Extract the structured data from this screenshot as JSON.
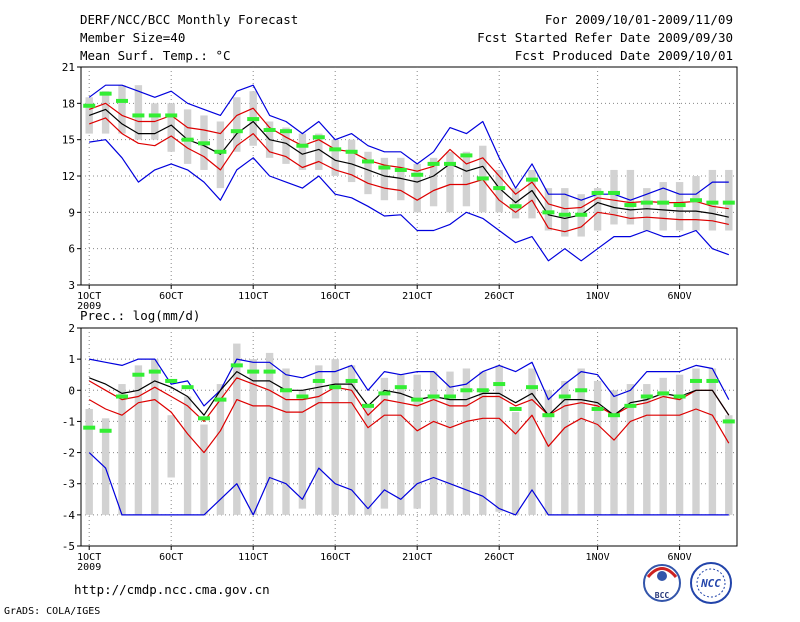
{
  "header": {
    "title": "DERF/NCC/BCC Monthly Forecast",
    "member_size": "Member Size=40",
    "variable": "Mean Surf. Temp.: °C",
    "period": "For 2009/10/01-2009/11/09",
    "refer_date": "Fcst Started Refer Date 2009/09/30",
    "produced_date": "Fcst Produced Date 2009/10/01"
  },
  "footer": {
    "url": "http://cmdp.ncc.cma.gov.cn",
    "grads": "GrADS: COLA/IGES",
    "logo_bcc": "BCC",
    "logo_ncc": "NCC"
  },
  "colors": {
    "ensemble_range": "#0000dd",
    "spread_band": "#dd0000",
    "ensemble_mean": "#000000",
    "observation": "#33ee33",
    "box": "#d2d2d2",
    "grid": "#888888"
  },
  "chart_data": [
    {
      "type": "line",
      "title": "Mean Surf. Temp.: °C",
      "xlabel": "",
      "ylabel": "°C",
      "ylim": [
        3,
        21
      ],
      "yticks": [
        "3",
        "6",
        "9",
        "12",
        "15",
        "18",
        "21"
      ],
      "xlim": [
        0.5,
        40.5
      ],
      "xticks": [
        {
          "day": 1,
          "label": "1OCT",
          "sub": "2009"
        },
        {
          "day": 6,
          "label": "6OCT"
        },
        {
          "day": 11,
          "label": "11OCT"
        },
        {
          "day": 16,
          "label": "16OCT"
        },
        {
          "day": 21,
          "label": "21OCT"
        },
        {
          "day": 26,
          "label": "26OCT"
        },
        {
          "day": 32,
          "label": "1NOV"
        },
        {
          "day": 37,
          "label": "6NOV"
        }
      ],
      "x": [
        1,
        2,
        3,
        4,
        5,
        6,
        7,
        8,
        9,
        10,
        11,
        12,
        13,
        14,
        15,
        16,
        17,
        18,
        19,
        20,
        21,
        22,
        23,
        24,
        25,
        26,
        27,
        28,
        29,
        30,
        31,
        32,
        33,
        34,
        35,
        36,
        37,
        38,
        39,
        40
      ],
      "series": [
        {
          "name": "ensemble max",
          "role": "max",
          "values": [
            18.5,
            19.5,
            19.5,
            19.0,
            18.5,
            19.0,
            18.0,
            17.5,
            17.0,
            19.0,
            19.5,
            17.0,
            16.5,
            15.5,
            16.5,
            15.0,
            15.5,
            14.5,
            14.0,
            14.0,
            13.0,
            14.0,
            16.0,
            15.5,
            16.5,
            13.5,
            11.0,
            13.0,
            10.5,
            10.5,
            10.0,
            10.5,
            10.5,
            10.0,
            10.5,
            11.0,
            10.5,
            10.5,
            11.5,
            11.5
          ]
        },
        {
          "name": "ensemble upper",
          "role": "upper",
          "values": [
            17.5,
            18.0,
            17.0,
            16.5,
            16.5,
            17.0,
            16.0,
            15.8,
            15.5,
            17.0,
            17.6,
            16.0,
            15.2,
            14.5,
            15.0,
            14.2,
            14.0,
            13.3,
            12.9,
            12.7,
            12.4,
            12.8,
            14.2,
            13.0,
            13.5,
            12.0,
            10.5,
            11.5,
            9.7,
            9.3,
            9.4,
            10.2,
            10.0,
            9.8,
            9.9,
            9.8,
            9.8,
            9.9,
            9.5,
            9.3
          ]
        },
        {
          "name": "ensemble mean",
          "role": "mean",
          "values": [
            17.0,
            17.5,
            16.3,
            15.5,
            15.5,
            16.2,
            15.0,
            14.5,
            13.8,
            15.5,
            16.5,
            15.0,
            14.7,
            13.8,
            14.2,
            13.3,
            13.0,
            12.5,
            12.0,
            11.8,
            11.5,
            12.0,
            13.0,
            12.4,
            12.8,
            11.0,
            9.8,
            10.8,
            8.8,
            8.5,
            8.8,
            9.8,
            9.4,
            9.2,
            9.3,
            9.2,
            9.1,
            9.1,
            8.9,
            8.6
          ]
        },
        {
          "name": "ensemble lower",
          "role": "lower",
          "values": [
            16.3,
            16.8,
            15.5,
            14.7,
            14.5,
            15.3,
            14.3,
            13.6,
            12.5,
            14.5,
            15.5,
            14.0,
            13.6,
            12.7,
            13.2,
            12.5,
            12.1,
            11.4,
            11.0,
            10.8,
            10.0,
            10.8,
            11.3,
            11.3,
            11.7,
            10.0,
            9.0,
            10.0,
            7.7,
            7.4,
            7.8,
            9.0,
            8.8,
            8.5,
            8.6,
            8.5,
            8.4,
            8.4,
            8.3,
            8.0
          ]
        },
        {
          "name": "ensemble min",
          "role": "min",
          "values": [
            14.8,
            15.0,
            13.5,
            11.5,
            12.5,
            13.0,
            12.5,
            11.5,
            10.0,
            12.5,
            13.5,
            12.0,
            11.5,
            11.0,
            12.0,
            10.5,
            10.2,
            9.5,
            8.7,
            8.8,
            7.5,
            7.5,
            8.0,
            9.0,
            8.5,
            7.5,
            6.5,
            7.0,
            5.0,
            6.0,
            5.0,
            6.0,
            7.0,
            7.0,
            7.5,
            7.0,
            7.0,
            7.5,
            6.0,
            5.5
          ]
        },
        {
          "name": "observation",
          "role": "obs",
          "values": [
            17.8,
            18.8,
            18.2,
            17.0,
            17.0,
            17.0,
            15.0,
            14.7,
            14.0,
            15.7,
            16.7,
            15.8,
            15.7,
            14.5,
            15.2,
            14.2,
            14.0,
            13.2,
            12.7,
            12.5,
            12.1,
            13.0,
            13.0,
            13.7,
            11.8,
            11.0,
            9.5,
            11.7,
            9.0,
            8.8,
            8.8,
            10.6,
            10.6,
            9.6,
            9.8,
            9.8,
            9.6,
            10.0,
            9.8,
            9.8
          ]
        }
      ],
      "boxes": [
        [
          15.5,
          18.5
        ],
        [
          15.5,
          19.0
        ],
        [
          15.5,
          19.5
        ],
        [
          15.0,
          19.5
        ],
        [
          15.0,
          18.0
        ],
        [
          14.0,
          18.0
        ],
        [
          13.0,
          17.5
        ],
        [
          12.5,
          17.0
        ],
        [
          11.0,
          16.5
        ],
        [
          14.0,
          18.5
        ],
        [
          14.5,
          19.0
        ],
        [
          13.5,
          16.5
        ],
        [
          13.0,
          16.0
        ],
        [
          12.5,
          15.5
        ],
        [
          12.5,
          15.5
        ],
        [
          12.0,
          15.0
        ],
        [
          11.5,
          15.0
        ],
        [
          10.5,
          14.0
        ],
        [
          10.0,
          13.5
        ],
        [
          10.0,
          13.5
        ],
        [
          9.0,
          13.0
        ],
        [
          9.5,
          13.5
        ],
        [
          9.0,
          14.0
        ],
        [
          9.5,
          14.0
        ],
        [
          9.0,
          14.5
        ],
        [
          9.0,
          12.5
        ],
        [
          8.5,
          11.0
        ],
        [
          8.5,
          12.5
        ],
        [
          7.5,
          11.0
        ],
        [
          7.0,
          11.0
        ],
        [
          7.0,
          10.5
        ],
        [
          7.5,
          11.0
        ],
        [
          8.0,
          12.5
        ],
        [
          8.0,
          12.5
        ],
        [
          7.5,
          11.0
        ],
        [
          7.5,
          11.5
        ],
        [
          7.5,
          11.5
        ],
        [
          7.5,
          12.0
        ],
        [
          7.5,
          12.5
        ],
        [
          7.5,
          12.5
        ]
      ]
    },
    {
      "type": "line",
      "title": "Prec.: log(mm/d)",
      "xlabel": "",
      "ylabel": "log(mm/d)",
      "ylim": [
        -5,
        2
      ],
      "yticks": [
        "-5",
        "-4",
        "-3",
        "-2",
        "-1",
        "0",
        "1",
        "2"
      ],
      "xlim": [
        0.5,
        40.5
      ],
      "xticks": [
        {
          "day": 1,
          "label": "1OCT",
          "sub": "2009"
        },
        {
          "day": 6,
          "label": "6OCT"
        },
        {
          "day": 11,
          "label": "11OCT"
        },
        {
          "day": 16,
          "label": "16OCT"
        },
        {
          "day": 21,
          "label": "21OCT"
        },
        {
          "day": 26,
          "label": "26OCT"
        },
        {
          "day": 32,
          "label": "1NOV"
        },
        {
          "day": 37,
          "label": "6NOV"
        }
      ],
      "x": [
        1,
        2,
        3,
        4,
        5,
        6,
        7,
        8,
        9,
        10,
        11,
        12,
        13,
        14,
        15,
        16,
        17,
        18,
        19,
        20,
        21,
        22,
        23,
        24,
        25,
        26,
        27,
        28,
        29,
        30,
        31,
        32,
        33,
        34,
        35,
        36,
        37,
        38,
        39,
        40
      ],
      "series": [
        {
          "name": "ensemble max",
          "role": "max",
          "values": [
            1.0,
            0.9,
            0.8,
            1.0,
            1.0,
            0.2,
            0.3,
            -0.5,
            0.0,
            1.0,
            0.9,
            0.9,
            0.5,
            0.4,
            0.6,
            0.6,
            0.8,
            0.0,
            0.6,
            0.5,
            0.6,
            0.6,
            0.1,
            0.2,
            0.6,
            0.8,
            0.6,
            0.9,
            -0.3,
            0.2,
            0.6,
            0.5,
            -0.2,
            0.0,
            0.6,
            0.6,
            0.6,
            0.8,
            0.7,
            -0.3
          ]
        },
        {
          "name": "ensemble upper",
          "role": "upper",
          "values": [
            0.3,
            0.0,
            -0.3,
            -0.2,
            0.1,
            -0.2,
            -0.5,
            -1.0,
            -0.3,
            0.4,
            0.2,
            0.0,
            -0.3,
            -0.3,
            -0.2,
            0.1,
            0.0,
            -0.8,
            -0.3,
            -0.4,
            -0.5,
            -0.3,
            -0.5,
            -0.5,
            -0.2,
            -0.2,
            -0.5,
            -0.3,
            -0.8,
            -0.5,
            -0.4,
            -0.5,
            -0.8,
            -0.5,
            -0.4,
            -0.2,
            -0.3,
            0.0,
            0.0,
            -0.8
          ]
        },
        {
          "name": "ensemble mean",
          "role": "mean",
          "values": [
            0.4,
            0.2,
            -0.1,
            0.0,
            0.3,
            0.1,
            -0.2,
            -0.8,
            0.0,
            0.6,
            0.3,
            0.3,
            0.0,
            0.0,
            0.1,
            0.2,
            0.2,
            -0.5,
            0.0,
            -0.1,
            -0.3,
            -0.2,
            -0.3,
            -0.3,
            -0.1,
            -0.1,
            -0.4,
            -0.1,
            -0.8,
            -0.3,
            -0.3,
            -0.4,
            -0.8,
            -0.4,
            -0.3,
            -0.1,
            -0.2,
            0.0,
            0.0,
            -0.8
          ]
        },
        {
          "name": "ensemble lower",
          "role": "lower",
          "values": [
            -0.3,
            -0.6,
            -0.8,
            -0.4,
            -0.3,
            -0.7,
            -1.4,
            -2.0,
            -1.3,
            -0.3,
            -0.5,
            -0.5,
            -0.7,
            -0.7,
            -0.4,
            -0.4,
            -0.4,
            -1.2,
            -0.8,
            -0.8,
            -1.3,
            -1.0,
            -1.2,
            -1.0,
            -0.9,
            -0.9,
            -1.4,
            -0.8,
            -1.8,
            -1.2,
            -0.9,
            -1.1,
            -1.6,
            -1.0,
            -0.8,
            -0.8,
            -0.8,
            -0.6,
            -0.8,
            -1.7
          ]
        },
        {
          "name": "ensemble min",
          "role": "min",
          "values": [
            -2.0,
            -2.5,
            -4.0,
            -4.0,
            -4.0,
            -4.0,
            -4.0,
            -4.0,
            -3.5,
            -3.0,
            -4.0,
            -2.8,
            -3.0,
            -3.5,
            -2.5,
            -3.0,
            -3.2,
            -3.8,
            -3.2,
            -3.5,
            -3.0,
            -2.8,
            -3.0,
            -3.2,
            -3.4,
            -3.8,
            -4.0,
            -3.2,
            -4.0,
            -4.0,
            -4.0,
            -4.0,
            -4.0,
            -4.0,
            -4.0,
            -4.0,
            -4.0,
            -4.0,
            -4.0,
            -4.0
          ]
        },
        {
          "name": "observation",
          "role": "obs",
          "values": [
            -1.2,
            -1.3,
            -0.2,
            0.5,
            0.6,
            0.3,
            0.1,
            -0.9,
            -0.3,
            0.8,
            0.6,
            0.6,
            0.0,
            -0.2,
            0.3,
            0.1,
            0.3,
            -0.5,
            -0.1,
            0.1,
            -0.3,
            -0.2,
            -0.2,
            0.0,
            0.0,
            0.2,
            -0.6,
            0.1,
            -0.8,
            -0.2,
            0.0,
            -0.6,
            -0.8,
            -0.5,
            -0.2,
            -0.1,
            -0.2,
            0.3,
            0.3,
            -1.0
          ]
        }
      ],
      "boxes": [
        [
          -4.0,
          -0.6
        ],
        [
          -4.0,
          -0.9
        ],
        [
          -4.0,
          0.2
        ],
        [
          -4.0,
          0.8
        ],
        [
          -4.0,
          1.0
        ],
        [
          -2.8,
          -0.8
        ],
        [
          -4.0,
          -0.2
        ],
        [
          -4.0,
          -1.1
        ],
        [
          -4.0,
          0.2
        ],
        [
          -4.0,
          1.5
        ],
        [
          -4.0,
          1.0
        ],
        [
          -4.0,
          1.2
        ],
        [
          -4.0,
          0.7
        ],
        [
          -3.8,
          0.0
        ],
        [
          -4.0,
          0.8
        ],
        [
          -4.0,
          1.0
        ],
        [
          -4.0,
          0.8
        ],
        [
          -4.0,
          -0.5
        ],
        [
          -3.8,
          0.4
        ],
        [
          -4.0,
          0.5
        ],
        [
          -3.8,
          0.5
        ],
        [
          -4.0,
          0.6
        ],
        [
          -4.0,
          0.6
        ],
        [
          -4.0,
          0.7
        ],
        [
          -4.0,
          0.6
        ],
        [
          -3.9,
          0.8
        ],
        [
          -4.0,
          -0.7
        ],
        [
          -4.0,
          0.7
        ],
        [
          -4.0,
          0.0
        ],
        [
          -4.0,
          0.3
        ],
        [
          -4.0,
          0.7
        ],
        [
          -4.0,
          0.3
        ],
        [
          -4.0,
          0.0
        ],
        [
          -4.0,
          0.2
        ],
        [
          -4.0,
          0.2
        ],
        [
          -4.0,
          0.4
        ],
        [
          -4.0,
          0.5
        ],
        [
          -4.0,
          0.7
        ],
        [
          -4.0,
          0.7
        ],
        [
          -4.0,
          -0.8
        ]
      ]
    }
  ]
}
